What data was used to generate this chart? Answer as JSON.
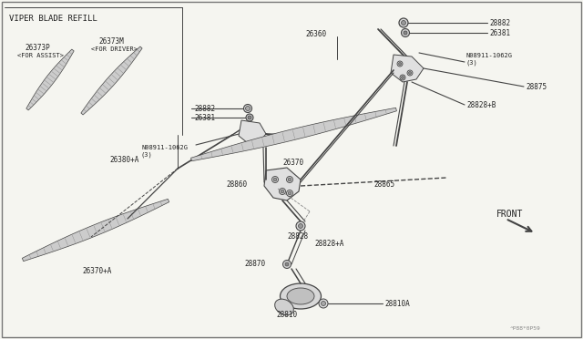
{
  "bg_color": "#f5f5f0",
  "border_color": "#888888",
  "dc": "#444444",
  "tc": "#222222",
  "figsize": [
    6.4,
    3.72
  ],
  "dpi": 100,
  "labels": {
    "viper_blade_refill": "VIPER BLADE REFILL",
    "26373P": "26373P",
    "26373P_sub": "<FOR ASSIST>",
    "26373M": "26373M",
    "26373M_sub": "<FOR DRIVER>",
    "26380A": "26380+A",
    "26370A": "26370+A",
    "28882_L": "28882",
    "26381_L": "26381",
    "N08911_L": "N08911-1062G\n(3)",
    "26360": "26360",
    "28882_R": "28882",
    "26381_R": "26381",
    "N08911_R": "N08911-1062G\n(3)",
    "28875": "28875",
    "28828B": "28828+B",
    "26370": "26370",
    "28865": "28865",
    "28860": "28860",
    "28828": "28828",
    "28828A": "28828+A",
    "28870": "28870",
    "28810A": "28810A",
    "28810": "28810",
    "front": "FRONT",
    "watermark": "^P88*0P59"
  }
}
